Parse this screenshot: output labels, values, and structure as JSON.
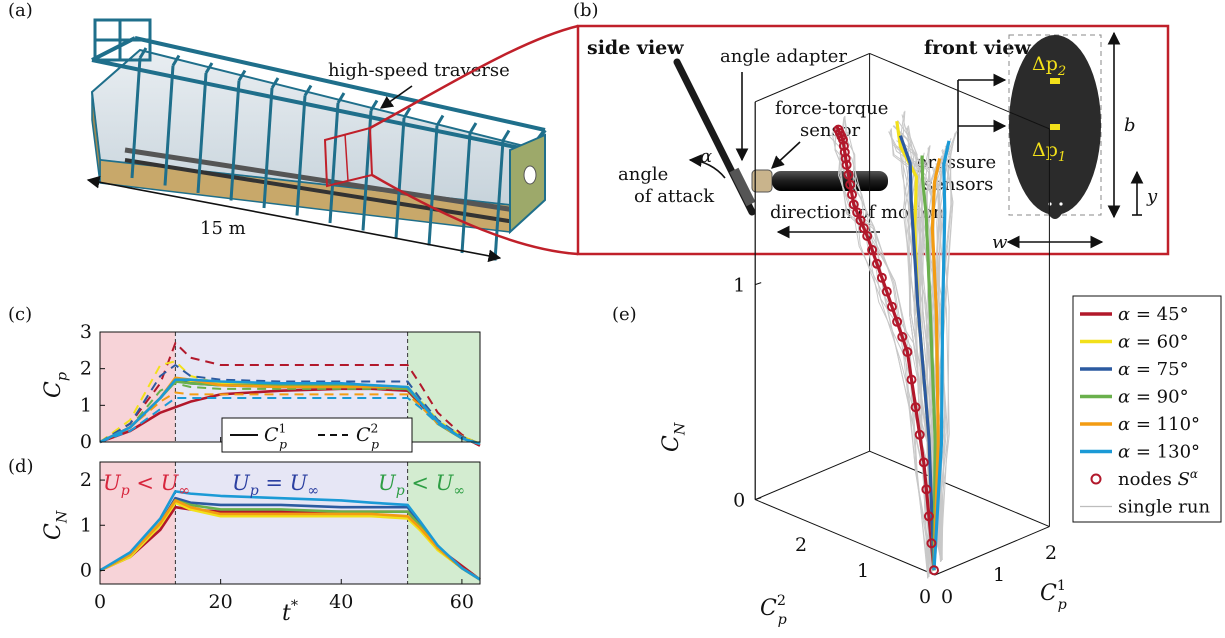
{
  "panel_labels": [
    "(a)",
    "(b)",
    "(c)",
    "(d)",
    "(e)"
  ],
  "panel_a": {
    "traverse_label": "high-speed traverse",
    "length_label": "15 m"
  },
  "panel_b": {
    "side_view": "side view",
    "front_view": "front view",
    "angle_adapter": "angle adapter",
    "force_sensor_1": "force-torque",
    "force_sensor_2": "sensor",
    "angle_1": "angle",
    "angle_2": "of attack",
    "alpha": "α",
    "motion": "direction of motion",
    "pressure_1": "pressure",
    "pressure_2": "sensors",
    "dp2": "Δp",
    "dp2_sub": "2",
    "dp1": "Δp",
    "dp1_sub": "1",
    "b": "b",
    "w": "w",
    "y": "y"
  },
  "colors": {
    "a45": "#b2182b",
    "a60": "#f2e01a",
    "a75": "#2c5aa0",
    "a90": "#6ab04c",
    "a110": "#f39c12",
    "a130": "#1b9ad6",
    "region_accel": "#f7d3d8",
    "region_const": "#e6e6f5",
    "region_decel": "#d3ecd0",
    "frame": "#c0202a",
    "text_red": "#d7263d",
    "text_blue": "#2b3fa0",
    "text_green": "#2e9e44"
  },
  "chart_data": [
    {
      "panel": "(c)",
      "type": "line",
      "ylabel": "C_p",
      "xlim": [
        0,
        63
      ],
      "ylim": [
        0,
        3
      ],
      "yticks": [
        0,
        1,
        2,
        3
      ],
      "x": [
        0,
        5,
        10,
        12.5,
        15,
        20,
        30,
        40,
        45,
        51,
        53,
        56,
        60,
        63
      ],
      "legend": [
        "C_p^1",
        "C_p^2"
      ],
      "series": [
        {
          "name": "α = 45°",
          "kind": "C_p^1",
          "values": [
            0.0,
            0.3,
            0.8,
            0.95,
            1.1,
            1.3,
            1.4,
            1.45,
            1.45,
            1.4,
            1.05,
            0.55,
            0.15,
            -0.1
          ]
        },
        {
          "name": "α = 45°",
          "kind": "C_p^2",
          "values": [
            0.0,
            0.5,
            1.6,
            2.7,
            2.3,
            2.1,
            2.1,
            2.1,
            2.1,
            2.1,
            1.6,
            0.8,
            0.2,
            -0.1
          ]
        },
        {
          "name": "α = 60°",
          "kind": "C_p^1",
          "values": [
            0.0,
            0.4,
            1.2,
            1.7,
            1.65,
            1.6,
            1.55,
            1.55,
            1.5,
            1.45,
            1.1,
            0.55,
            0.15,
            -0.05
          ]
        },
        {
          "name": "α = 60°",
          "kind": "C_p^2",
          "values": [
            0.0,
            0.6,
            2.1,
            2.2,
            1.8,
            1.6,
            1.6,
            1.55,
            1.55,
            1.5,
            1.15,
            0.6,
            0.15,
            -0.05
          ]
        },
        {
          "name": "α = 75°",
          "kind": "C_p^1",
          "values": [
            0.0,
            0.4,
            1.2,
            1.7,
            1.6,
            1.55,
            1.5,
            1.5,
            1.5,
            1.45,
            1.1,
            0.5,
            0.1,
            -0.05
          ]
        },
        {
          "name": "α = 75°",
          "kind": "C_p^2",
          "values": [
            0.0,
            0.5,
            1.8,
            2.1,
            1.8,
            1.7,
            1.65,
            1.65,
            1.65,
            1.65,
            1.2,
            0.6,
            0.15,
            -0.05
          ]
        },
        {
          "name": "α = 90°",
          "kind": "C_p^1",
          "values": [
            0.0,
            0.4,
            1.2,
            1.65,
            1.6,
            1.55,
            1.55,
            1.55,
            1.5,
            1.45,
            1.1,
            0.5,
            0.1,
            -0.05
          ]
        },
        {
          "name": "α = 90°",
          "kind": "C_p^2",
          "values": [
            0.0,
            0.4,
            1.4,
            1.6,
            1.5,
            1.45,
            1.45,
            1.45,
            1.45,
            1.45,
            1.1,
            0.55,
            0.1,
            -0.05
          ]
        },
        {
          "name": "α = 110°",
          "kind": "C_p^1",
          "values": [
            0.0,
            0.4,
            1.2,
            1.75,
            1.7,
            1.55,
            1.5,
            1.5,
            1.5,
            1.5,
            1.1,
            0.55,
            0.1,
            -0.05
          ]
        },
        {
          "name": "α = 110°",
          "kind": "C_p^2",
          "values": [
            0.0,
            0.4,
            1.1,
            1.35,
            1.3,
            1.3,
            1.3,
            1.3,
            1.3,
            1.3,
            1.0,
            0.5,
            0.1,
            -0.05
          ]
        },
        {
          "name": "α = 130°",
          "kind": "C_p^1",
          "values": [
            0.0,
            0.4,
            1.2,
            1.7,
            1.7,
            1.65,
            1.6,
            1.6,
            1.55,
            1.5,
            1.1,
            0.55,
            0.1,
            -0.05
          ]
        },
        {
          "name": "α = 130°",
          "kind": "C_p^2",
          "values": [
            0.0,
            0.3,
            0.9,
            1.2,
            1.2,
            1.2,
            1.2,
            1.2,
            1.2,
            1.2,
            0.95,
            0.5,
            0.1,
            -0.05
          ]
        }
      ]
    },
    {
      "panel": "(d)",
      "type": "line",
      "xlabel": "t*",
      "ylabel": "C_N",
      "xlim": [
        0,
        63
      ],
      "ylim": [
        -0.3,
        2.4
      ],
      "xticks": [
        0,
        20,
        40,
        60
      ],
      "yticks": [
        0,
        1,
        2
      ],
      "regions": [
        "U_p < U_∞",
        "U_p = U_∞",
        "U_p < U_∞"
      ],
      "x": [
        0,
        5,
        10,
        12.5,
        15,
        20,
        30,
        40,
        45,
        51,
        53,
        56,
        60,
        63
      ],
      "series": [
        {
          "name": "α = 45°",
          "values": [
            0.0,
            0.3,
            0.9,
            1.4,
            1.35,
            1.3,
            1.3,
            1.3,
            1.3,
            1.3,
            1.0,
            0.5,
            0.1,
            -0.2
          ]
        },
        {
          "name": "α = 60°",
          "values": [
            0.0,
            0.3,
            1.0,
            1.5,
            1.35,
            1.2,
            1.2,
            1.2,
            1.2,
            1.15,
            0.9,
            0.45,
            0.05,
            -0.2
          ]
        },
        {
          "name": "α = 75°",
          "values": [
            0.0,
            0.35,
            1.05,
            1.6,
            1.5,
            1.45,
            1.45,
            1.4,
            1.4,
            1.4,
            1.05,
            0.5,
            0.05,
            -0.2
          ]
        },
        {
          "name": "α = 90°",
          "values": [
            0.0,
            0.35,
            1.05,
            1.55,
            1.45,
            1.35,
            1.35,
            1.3,
            1.3,
            1.3,
            1.0,
            0.5,
            0.05,
            -0.2
          ]
        },
        {
          "name": "α = 110°",
          "values": [
            0.0,
            0.35,
            1.05,
            1.55,
            1.4,
            1.25,
            1.25,
            1.25,
            1.25,
            1.2,
            0.95,
            0.5,
            0.05,
            -0.2
          ]
        },
        {
          "name": "α = 130°",
          "values": [
            0.0,
            0.4,
            1.15,
            1.75,
            1.7,
            1.65,
            1.6,
            1.55,
            1.5,
            1.45,
            1.1,
            0.55,
            0.05,
            -0.2
          ]
        }
      ]
    },
    {
      "panel": "(e)",
      "type": "line",
      "subtype": "3d",
      "xlabel": "C_p^1",
      "ylabel": "C_p^2",
      "zlabel": "C_N",
      "xticks": [
        0,
        1,
        2
      ],
      "yticks": [
        0,
        1,
        2
      ],
      "zticks": [
        0,
        1
      ],
      "legend": [
        "α = 45°",
        "α = 60°",
        "α = 75°",
        "α = 90°",
        "α = 110°",
        "α = 130°",
        "nodes S^α",
        "single run"
      ],
      "series": [
        {
          "name": "α = 45°",
          "points": [
            [
              0.1,
              0.1,
              0.0
            ],
            [
              0.5,
              0.6,
              0.4
            ],
            [
              0.9,
              1.2,
              0.8
            ],
            [
              1.1,
              1.7,
              1.0
            ],
            [
              1.2,
              2.1,
              1.2
            ],
            [
              1.3,
              2.4,
              1.3
            ],
            [
              1.4,
              2.6,
              1.45
            ],
            [
              1.45,
              2.7,
              1.55
            ],
            [
              1.45,
              2.8,
              1.6
            ]
          ]
        },
        {
          "name": "α = 60°",
          "points": [
            [
              0.1,
              0.1,
              0.0
            ],
            [
              0.6,
              0.6,
              0.5
            ],
            [
              1.1,
              1.2,
              1.0
            ],
            [
              1.4,
              1.5,
              1.3
            ],
            [
              1.55,
              1.6,
              1.5
            ],
            [
              1.6,
              1.9,
              1.6
            ],
            [
              1.65,
              2.0,
              1.7
            ]
          ]
        },
        {
          "name": "α = 75°",
          "points": [
            [
              0.1,
              0.1,
              0.0
            ],
            [
              0.6,
              0.6,
              0.5
            ],
            [
              1.1,
              1.2,
              1.0
            ],
            [
              1.45,
              1.6,
              1.4
            ],
            [
              1.55,
              1.7,
              1.55
            ],
            [
              1.6,
              1.9,
              1.65
            ]
          ]
        },
        {
          "name": "α = 90°",
          "points": [
            [
              0.1,
              0.1,
              0.0
            ],
            [
              0.6,
              0.5,
              0.5
            ],
            [
              1.1,
              1.0,
              1.0
            ],
            [
              1.5,
              1.4,
              1.35
            ],
            [
              1.55,
              1.5,
              1.5
            ],
            [
              1.6,
              1.55,
              1.6
            ]
          ]
        },
        {
          "name": "α = 110°",
          "points": [
            [
              0.1,
              0.1,
              0.0
            ],
            [
              0.6,
              0.45,
              0.5
            ],
            [
              1.1,
              0.9,
              1.0
            ],
            [
              1.5,
              1.3,
              1.3
            ],
            [
              1.6,
              1.35,
              1.5
            ],
            [
              1.7,
              1.35,
              1.6
            ]
          ]
        },
        {
          "name": "α = 130°",
          "points": [
            [
              0.1,
              0.1,
              0.0
            ],
            [
              0.6,
              0.4,
              0.5
            ],
            [
              1.1,
              0.8,
              1.0
            ],
            [
              1.5,
              1.1,
              1.4
            ],
            [
              1.6,
              1.2,
              1.6
            ],
            [
              1.7,
              1.2,
              1.7
            ]
          ]
        }
      ]
    }
  ]
}
